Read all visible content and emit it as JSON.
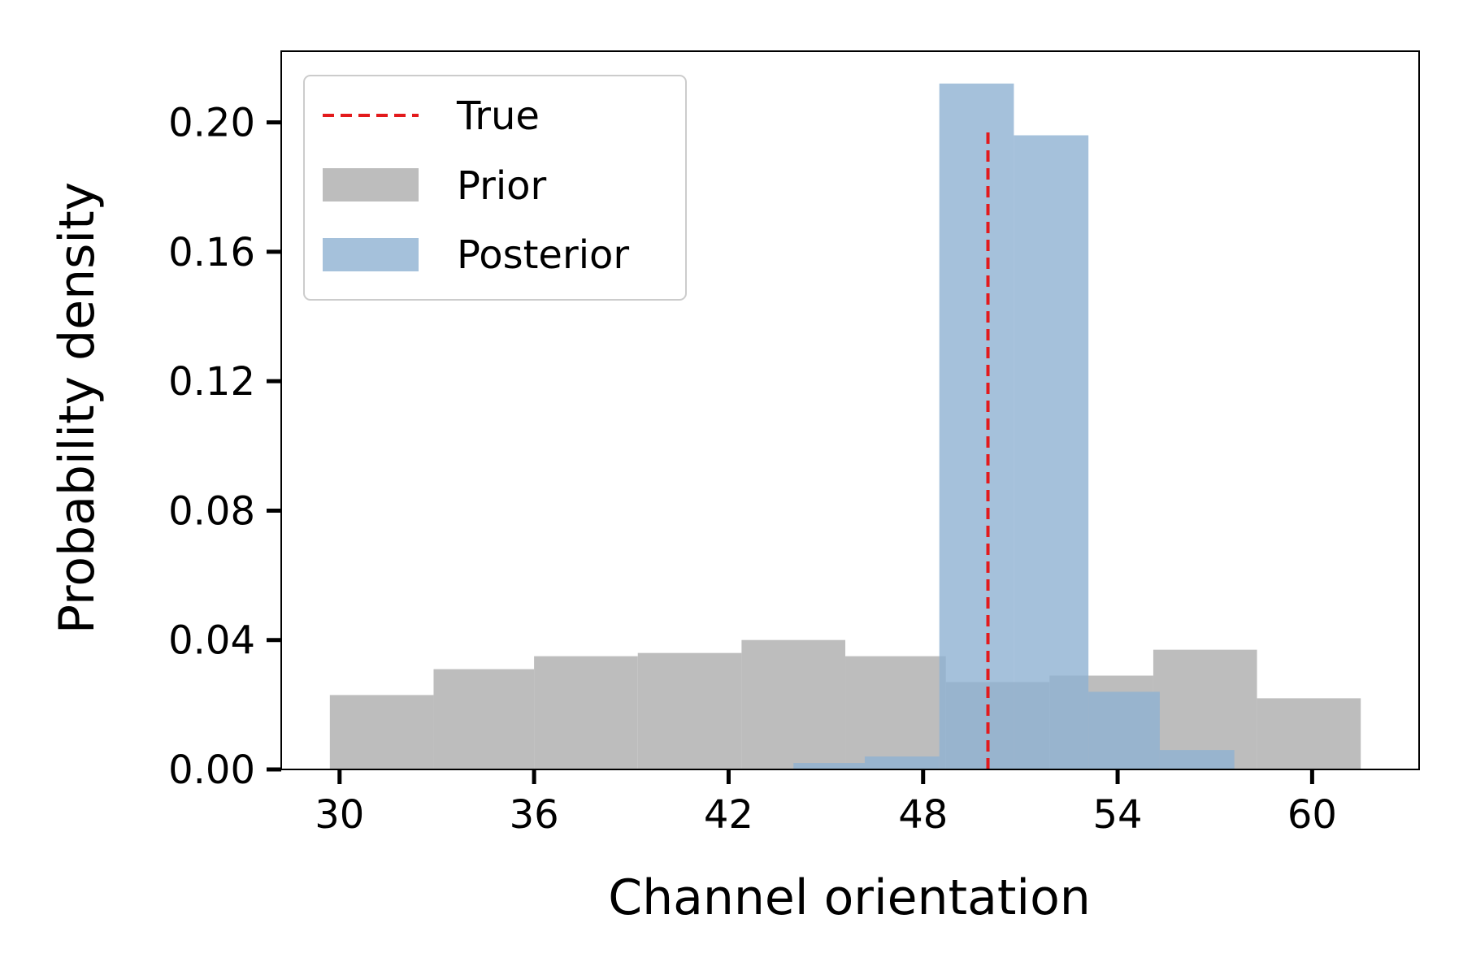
{
  "chart_data": {
    "type": "bar",
    "xlabel": "Channel orientation",
    "ylabel": "Probability density",
    "xlim": [
      28.2,
      63.3
    ],
    "ylim": [
      0,
      0.222
    ],
    "xticks": [
      30,
      36,
      42,
      48,
      54,
      60
    ],
    "yticks": [
      0.0,
      0.04,
      0.08,
      0.12,
      0.16,
      0.2
    ],
    "xtick_labels": [
      "30",
      "36",
      "42",
      "48",
      "54",
      "60"
    ],
    "ytick_labels": [
      "0.00",
      "0.04",
      "0.08",
      "0.12",
      "0.16",
      "0.20"
    ],
    "grid": false,
    "legend_position": "top-left",
    "true_value": 50.0,
    "true_line_top": 0.198,
    "series": [
      {
        "name": "Prior",
        "color": "#bdbdbd",
        "bins": [
          {
            "x0": 29.7,
            "x1": 32.9,
            "value": 0.023
          },
          {
            "x0": 32.9,
            "x1": 36.0,
            "value": 0.031
          },
          {
            "x0": 36.0,
            "x1": 39.2,
            "value": 0.035
          },
          {
            "x0": 39.2,
            "x1": 42.4,
            "value": 0.036
          },
          {
            "x0": 42.4,
            "x1": 45.6,
            "value": 0.04
          },
          {
            "x0": 45.6,
            "x1": 48.7,
            "value": 0.035
          },
          {
            "x0": 48.7,
            "x1": 51.9,
            "value": 0.027
          },
          {
            "x0": 51.9,
            "x1": 55.1,
            "value": 0.029
          },
          {
            "x0": 55.1,
            "x1": 58.3,
            "value": 0.037
          },
          {
            "x0": 58.3,
            "x1": 61.5,
            "value": 0.022
          }
        ]
      },
      {
        "name": "Posterior",
        "color": "#8fb2d2",
        "opacity": 0.8,
        "bins": [
          {
            "x0": 44.0,
            "x1": 46.2,
            "value": 0.002
          },
          {
            "x0": 46.2,
            "x1": 48.5,
            "value": 0.004
          },
          {
            "x0": 48.5,
            "x1": 50.8,
            "value": 0.212
          },
          {
            "x0": 50.8,
            "x1": 53.1,
            "value": 0.196
          },
          {
            "x0": 53.1,
            "x1": 55.3,
            "value": 0.024
          },
          {
            "x0": 55.3,
            "x1": 57.6,
            "value": 0.006
          }
        ]
      }
    ],
    "true_line": {
      "name": "True",
      "color": "#e31a1c",
      "style": "dashed"
    }
  }
}
